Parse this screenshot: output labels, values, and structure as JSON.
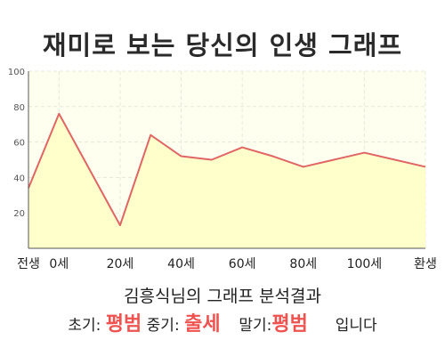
{
  "title": "재미로 보는 당신의 인생 그래프",
  "chart_data": {
    "type": "area",
    "x": [
      -10,
      0,
      20,
      30,
      40,
      50,
      60,
      70,
      80,
      90,
      100,
      110,
      120
    ],
    "values": [
      34,
      76,
      13,
      64,
      52,
      50,
      57,
      52,
      46,
      50,
      54,
      50,
      46
    ],
    "x_tick_values": [
      -10,
      0,
      20,
      40,
      60,
      80,
      100,
      120
    ],
    "x_tick_labels": [
      "전생",
      "0세",
      "20세",
      "40세",
      "60세",
      "80세",
      "100세",
      "환생"
    ],
    "y_ticks": [
      20,
      40,
      60,
      80,
      100
    ],
    "ylim": [
      0,
      100
    ],
    "grid": true,
    "colors": {
      "line": "#e06666",
      "fill": "#ffffcc",
      "plot_bg": "#fffff0",
      "grid": "#e8e8d8"
    }
  },
  "summary": {
    "line1": "김흥식님의 그래프 분석결과",
    "early_label": "초기:",
    "early_value": "평범",
    "mid_label": "중기:",
    "mid_value": "출세",
    "late_label": "말기:",
    "late_value": "평범",
    "suffix": "입니다"
  }
}
